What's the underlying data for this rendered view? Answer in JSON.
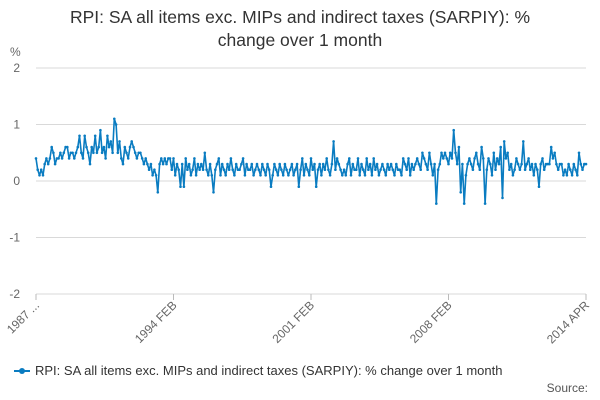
{
  "chart_data": {
    "type": "line",
    "title_line1": "RPI: SA all items exc. MIPs and indirect taxes (SARPIY): %",
    "title_line2": "change over 1 month",
    "ylabel": "%",
    "ylim": [
      -2,
      2
    ],
    "yticks": [
      "2",
      "1",
      "0",
      "-1",
      "-2"
    ],
    "xticks": [
      "1987 ...",
      "1994 FEB",
      "2001 FEB",
      "2008 FEB",
      "2014 APR"
    ],
    "grid": true,
    "legend_position": "bottom-left",
    "series": [
      {
        "name": "RPI: SA all items exc. MIPs and indirect taxes (SARPIY): % change over 1 month",
        "color": "#0a7cc1",
        "start": "1987-01",
        "values": [
          0.4,
          0.2,
          0.1,
          0.2,
          0.1,
          0.3,
          0.4,
          0.3,
          0.4,
          0.6,
          0.5,
          0.3,
          0.4,
          0.4,
          0.5,
          0.4,
          0.5,
          0.6,
          0.6,
          0.4,
          0.5,
          0.5,
          0.4,
          0.5,
          0.6,
          0.8,
          0.5,
          0.4,
          0.8,
          0.6,
          0.5,
          0.3,
          0.6,
          0.5,
          0.8,
          0.5,
          0.6,
          0.9,
          0.5,
          0.6,
          0.4,
          0.8,
          0.6,
          0.7,
          0.5,
          1.1,
          1.0,
          0.5,
          0.7,
          0.4,
          0.3,
          0.6,
          0.5,
          0.4,
          0.6,
          0.7,
          0.6,
          0.5,
          0.4,
          0.5,
          0.5,
          0.4,
          0.3,
          0.4,
          0.3,
          0.2,
          0.3,
          0.1,
          0.2,
          0.1,
          -0.2,
          0.3,
          0.4,
          0.3,
          0.4,
          0.3,
          0.4,
          0.4,
          0.2,
          0.4,
          0.1,
          0.3,
          0.2,
          -0.1,
          0.3,
          -0.1,
          0.4,
          0.2,
          0.3,
          0.1,
          0.2,
          0.4,
          0.1,
          0.3,
          0.2,
          0.3,
          0.2,
          0.5,
          0.2,
          0.1,
          0.3,
          0.1,
          -0.2,
          0.2,
          0.3,
          0.4,
          0.1,
          0.3,
          0.2,
          0.1,
          0.3,
          0.2,
          0.4,
          0.2,
          0.1,
          0.3,
          0.2,
          0.2,
          0.3,
          0.4,
          0.1,
          0.3,
          0.2,
          0.2,
          0.3,
          0.1,
          0.2,
          0.3,
          0.2,
          0.1,
          0.3,
          0.2,
          0.1,
          0.3,
          0.2,
          -0.1,
          0.1,
          0.3,
          0.2,
          0.1,
          0.3,
          0.2,
          0.1,
          0.3,
          0.2,
          0.1,
          0.2,
          0.3,
          0.1,
          0.2,
          0.3,
          -0.1,
          0.2,
          0.4,
          0.1,
          0.3,
          0.2,
          0.1,
          0.4,
          0.2,
          0.3,
          -0.1,
          0.2,
          0.3,
          0.1,
          0.3,
          0.2,
          0.4,
          0.2,
          0.1,
          0.3,
          0.7,
          0.2,
          0.4,
          0.3,
          0.2,
          0.1,
          0.2,
          0.1,
          0.3,
          0.4,
          0.1,
          0.3,
          0.2,
          0.2,
          0.4,
          0.1,
          0.3,
          0.2,
          0.1,
          0.4,
          0.2,
          0.3,
          0.1,
          0.4,
          0.2,
          0.3,
          0.1,
          0.2,
          0.3,
          0.2,
          0.1,
          0.3,
          0.2,
          0.3,
          0.2,
          0.1,
          0.3,
          0.2,
          0.2,
          0.1,
          0.4,
          0.3,
          0.2,
          0.4,
          0.1,
          0.3,
          0.2,
          0.3,
          0.4,
          0.3,
          0.2,
          0.5,
          0.4,
          0.3,
          0.2,
          0.5,
          0.3,
          0.1,
          0.3,
          -0.4,
          0.2,
          0.3,
          0.5,
          0.4,
          0.5,
          0.4,
          0.3,
          0.5,
          0.4,
          0.9,
          0.5,
          0.3,
          0.6,
          -0.2,
          0.3,
          -0.4,
          0.1,
          0.3,
          0.4,
          0.3,
          0.2,
          0.4,
          0.5,
          0.3,
          0.2,
          0.6,
          0.4,
          -0.4,
          0.2,
          0.4,
          0.3,
          0.1,
          0.5,
          0.2,
          0.4,
          0.3,
          0.6,
          -0.3,
          0.7,
          0.4,
          0.5,
          0.2,
          0.3,
          0.1,
          0.2,
          0.4,
          0.3,
          0.2,
          0.3,
          0.7,
          0.2,
          0.3,
          0.4,
          0.2,
          0.3,
          0.1,
          0.3,
          0.2,
          -0.1,
          0.3,
          0.4,
          0.2,
          0.3,
          0.3,
          0.3,
          0.6,
          0.4,
          0.5,
          0.3,
          0.2,
          0.3,
          0.3,
          0.1,
          0.2,
          0.1,
          0.3,
          0.2,
          0.1,
          0.3,
          0.2,
          0.1,
          0.5,
          0.3,
          0.2,
          0.3,
          0.3
        ]
      }
    ]
  },
  "source_label": "Source:"
}
